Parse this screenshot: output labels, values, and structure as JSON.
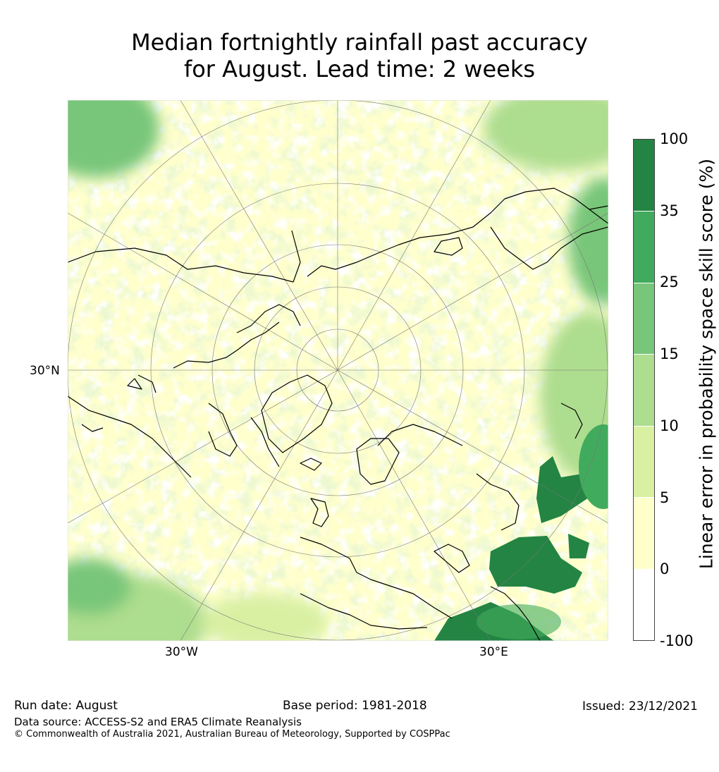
{
  "title_line1": "Median fortnightly rainfall past accuracy",
  "title_line2": "for August. Lead time: 2 weeks",
  "map": {
    "projection": "north-polar-stereographic",
    "ticks": {
      "lat_label": "30°N",
      "lon_west": "30°W",
      "lon_east": "30°E"
    }
  },
  "colorbar": {
    "title": "Linear error in probability space skill score (%)",
    "labels": [
      "100",
      "35",
      "25",
      "15",
      "10",
      "5",
      "0",
      "-100"
    ],
    "bins": [
      {
        "from": -100,
        "to": 0,
        "color": "#ffffff"
      },
      {
        "from": 0,
        "to": 5,
        "color": "#ffffcc"
      },
      {
        "from": 5,
        "to": 10,
        "color": "#d9f0a3"
      },
      {
        "from": 10,
        "to": 15,
        "color": "#addd8e"
      },
      {
        "from": 15,
        "to": 25,
        "color": "#78c679"
      },
      {
        "from": 25,
        "to": 35,
        "color": "#41ab5d"
      },
      {
        "from": 35,
        "to": 100,
        "color": "#238443"
      }
    ]
  },
  "footer": {
    "run_date": "Run date: August",
    "base_period": "Base period: 1981-2018",
    "issued": "Issued: 23/12/2021",
    "data_source": "Data source: ACCESS-S2 and ERA5 Climate Reanalysis",
    "copyright": "© Commonwealth of Australia 2021, Australian Bureau of Meteorology, Supported by COSPPac"
  }
}
